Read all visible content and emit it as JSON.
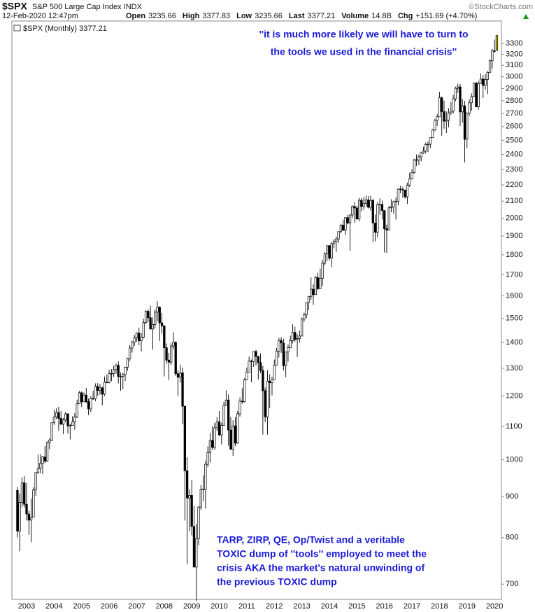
{
  "header": {
    "symbol": "$SPX",
    "name": "S&P 500 Large Cap Index INDX",
    "date": "12-Feb-2020 12:47pm",
    "quote": [
      {
        "label": "Open",
        "value": "3235.66"
      },
      {
        "label": "High",
        "value": "3377.83"
      },
      {
        "label": "Low",
        "value": "3235.66"
      },
      {
        "label": "Last",
        "value": "3377.21"
      },
      {
        "label": "Volume",
        "value": "14.8B"
      },
      {
        "label": "Chg",
        "value": "+151.69 (+4.70%)"
      }
    ],
    "source": "©StockCharts.com"
  },
  "chart_data": {
    "type": "candlestick",
    "legend": "$SPX (Monthly) 3377.21",
    "log_scale": true,
    "grid": false,
    "up_color": "#ffffff",
    "down_color": "#000000",
    "highlight_color": "#c9b800",
    "annotations": [
      {
        "lines": [
          "''it is much more likely we will have to turn to",
          "the tools we used in the financial crisis''"
        ],
        "color": "#1a1ad6"
      },
      {
        "lines": [
          "TARP, ZIRP, QE, Op/Twist and a veritable",
          "TOXIC dump of ''tools'' employed to meet the",
          "crisis AKA the market's natural unwinding of",
          "the previous TOXIC dump"
        ],
        "color": "#1a1ad6"
      }
    ],
    "categories": [
      null,
      null,
      null,
      null,
      "2003",
      null,
      null,
      null,
      null,
      null,
      null,
      null,
      null,
      null,
      null,
      null,
      "2004",
      null,
      null,
      null,
      null,
      null,
      null,
      null,
      null,
      null,
      null,
      null,
      "2005",
      null,
      null,
      null,
      null,
      null,
      null,
      null,
      null,
      null,
      null,
      null,
      "2006",
      null,
      null,
      null,
      null,
      null,
      null,
      null,
      null,
      null,
      null,
      null,
      "2007",
      null,
      null,
      null,
      null,
      null,
      null,
      null,
      null,
      null,
      null,
      null,
      "2008",
      null,
      null,
      null,
      null,
      null,
      null,
      null,
      null,
      null,
      null,
      null,
      "2009",
      null,
      null,
      null,
      null,
      null,
      null,
      null,
      null,
      null,
      null,
      null,
      "2010",
      null,
      null,
      null,
      null,
      null,
      null,
      null,
      null,
      null,
      null,
      null,
      "2011",
      null,
      null,
      null,
      null,
      null,
      null,
      null,
      null,
      null,
      null,
      null,
      "2012",
      null,
      null,
      null,
      null,
      null,
      null,
      null,
      null,
      null,
      null,
      null,
      "2013",
      null,
      null,
      null,
      null,
      null,
      null,
      null,
      null,
      null,
      null,
      null,
      "2014",
      null,
      null,
      null,
      null,
      null,
      null,
      null,
      null,
      null,
      null,
      null,
      "2015",
      null,
      null,
      null,
      null,
      null,
      null,
      null,
      null,
      null,
      null,
      null,
      "2016",
      null,
      null,
      null,
      null,
      null,
      null,
      null,
      null,
      null,
      null,
      null,
      "2017",
      null,
      null,
      null,
      null,
      null,
      null,
      null,
      null,
      null,
      null,
      null,
      "2018",
      null,
      null,
      null,
      null,
      null,
      null,
      null,
      null,
      null,
      null,
      null,
      "2019",
      null,
      null,
      null,
      null,
      null,
      null,
      null,
      null,
      null,
      null,
      null,
      "2020",
      null
    ],
    "open": [
      916,
      815,
      885,
      936,
      880,
      856,
      841,
      848,
      917,
      964,
      975,
      990,
      1008,
      996,
      1051,
      1058,
      1112,
      1131,
      1145,
      1126,
      1107,
      1121,
      1141,
      1102,
      1104,
      1115,
      1130,
      1174,
      1212,
      1181,
      1204,
      1181,
      1157,
      1192,
      1191,
      1234,
      1220,
      1229,
      1207,
      1249,
      1248,
      1280,
      1281,
      1295,
      1311,
      1270,
      1270,
      1277,
      1304,
      1336,
      1378,
      1401,
      1418,
      1438,
      1407,
      1421,
      1482,
      1531,
      1503,
      1455,
      1474,
      1527,
      1549,
      1481,
      1468,
      1379,
      1331,
      1323,
      1386,
      1400,
      1280,
      1267,
      1283,
      1166,
      969,
      896,
      903,
      826,
      735,
      798,
      873,
      919,
      919,
      987,
      1021,
      1057,
      1036,
      1096,
      1115,
      1074,
      1104,
      1169,
      1187,
      1089,
      1031,
      1102,
      1049,
      1141,
      1183,
      1181,
      1258,
      1286,
      1327,
      1326,
      1364,
      1345,
      1321,
      1292,
      1219,
      1131,
      1253,
      1247,
      1258,
      1312,
      1366,
      1408,
      1398,
      1310,
      1362,
      1379,
      1407,
      1441,
      1412,
      1416,
      1426,
      1498,
      1515,
      1569,
      1598,
      1631,
      1606,
      1686,
      1633,
      1682,
      1757,
      1806,
      1848,
      1783,
      1859,
      1872,
      1884,
      1924,
      1960,
      1931,
      2003,
      1972,
      2018,
      2068,
      2059,
      1995,
      2105,
      2068,
      2086,
      2107,
      2063,
      2104,
      1972,
      1920,
      2079,
      2080,
      2044,
      1940,
      1932,
      2060,
      2065,
      2097,
      2099,
      2174,
      2171,
      2168,
      2126,
      2199,
      2239,
      2279,
      2364,
      2363,
      2384,
      2412,
      2423,
      2470,
      2472,
      2519,
      2575,
      2648,
      2674,
      2824,
      2714,
      2641,
      2648,
      2705,
      2718,
      2816,
      2902,
      2914,
      2712,
      2760,
      2507,
      2704,
      2784,
      2834,
      2946,
      2752,
      2942,
      2980,
      2926,
      2977,
      3038,
      3141,
      3231,
      3235.66
    ],
    "high": [
      925,
      908,
      951,
      954,
      935,
      864,
      895,
      924,
      965,
      1015,
      1016,
      1011,
      1040,
      1054,
      1063,
      1112,
      1155,
      1159,
      1164,
      1151,
      1128,
      1147,
      1141,
      1109,
      1133,
      1143,
      1188,
      1218,
      1217,
      1213,
      1229,
      1191,
      1200,
      1219,
      1245,
      1246,
      1243,
      1234,
      1270,
      1276,
      1295,
      1297,
      1310,
      1318,
      1326,
      1284,
      1283,
      1306,
      1340,
      1389,
      1407,
      1431,
      1441,
      1461,
      1438,
      1498,
      1535,
      1540,
      1556,
      1504,
      1539,
      1576,
      1553,
      1524,
      1471,
      1396,
      1359,
      1397,
      1441,
      1405,
      1292,
      1314,
      1303,
      1168,
      1007,
      919,
      943,
      876,
      832,
      876,
      930,
      956,
      997,
      1039,
      1080,
      1101,
      1111,
      1130,
      1150,
      1112,
      1181,
      1220,
      1206,
      1131,
      1120,
      1130,
      1150,
      1196,
      1228,
      1263,
      1303,
      1345,
      1333,
      1365,
      1371,
      1347,
      1357,
      1308,
      1230,
      1293,
      1278,
      1269,
      1333,
      1378,
      1419,
      1422,
      1415,
      1363,
      1392,
      1427,
      1475,
      1465,
      1434,
      1448,
      1504,
      1525,
      1570,
      1598,
      1687,
      1654,
      1694,
      1710,
      1730,
      1775,
      1814,
      1849,
      1851,
      1867,
      1884,
      1897,
      1925,
      1968,
      1991,
      2005,
      2019,
      2019,
      2075,
      2093,
      2072,
      2119,
      2117,
      2126,
      2135,
      2130,
      2133,
      2113,
      2021,
      2094,
      2116,
      2104,
      2044,
      1963,
      2072,
      2111,
      2103,
      2121,
      2178,
      2194,
      2188,
      2170,
      2214,
      2278,
      2301,
      2371,
      2401,
      2399,
      2419,
      2454,
      2484,
      2491,
      2520,
      2582,
      2657,
      2695,
      2873,
      2835,
      2801,
      2718,
      2742,
      2791,
      2848,
      2916,
      2941,
      2940,
      2815,
      2800,
      2708,
      2813,
      2860,
      2950,
      2954,
      2964,
      3028,
      3014,
      3022,
      3050,
      3154,
      3248,
      3337,
      3377.83
    ],
    "low": [
      800,
      769,
      873,
      872,
      840,
      806,
      789,
      847,
      902,
      960,
      962,
      960,
      990,
      994,
      1031,
      1055,
      1105,
      1124,
      1087,
      1106,
      1076,
      1114,
      1078,
      1060,
      1103,
      1090,
      1127,
      1173,
      1163,
      1180,
      1176,
      1137,
      1146,
      1188,
      1183,
      1201,
      1205,
      1169,
      1201,
      1246,
      1245,
      1253,
      1268,
      1280,
      1245,
      1219,
      1224,
      1253,
      1291,
      1327,
      1360,
      1386,
      1403,
      1389,
      1364,
      1416,
      1476,
      1484,
      1454,
      1371,
      1457,
      1489,
      1406,
      1436,
      1270,
      1317,
      1257,
      1313,
      1374,
      1272,
      1200,
      1248,
      1107,
      840,
      741,
      815,
      805,
      735,
      667,
      783,
      866,
      888,
      869,
      979,
      992,
      1029,
      1029,
      1086,
      1071,
      1045,
      1102,
      1168,
      1041,
      1028,
      1011,
      1040,
      1047,
      1132,
      1174,
      1178,
      1257,
      1285,
      1249,
      1305,
      1311,
      1259,
      1282,
      1075,
      1114,
      1075,
      1159,
      1203,
      1258,
      1312,
      1341,
      1358,
      1292,
      1267,
      1325,
      1378,
      1396,
      1403,
      1343,
      1399,
      1426,
      1485,
      1501,
      1536,
      1581,
      1560,
      1605,
      1627,
      1633,
      1647,
      1746,
      1768,
      1771,
      1738,
      1834,
      1815,
      1862,
      1915,
      1930,
      1905,
      1965,
      1821,
      2001,
      1973,
      1988,
      1981,
      2040,
      2048,
      2068,
      2056,
      2044,
      1867,
      1872,
      1894,
      2019,
      1993,
      1812,
      1810,
      1938,
      2034,
      2025,
      1992,
      2075,
      2148,
      2120,
      2114,
      2084,
      2187,
      2234,
      2272,
      2322,
      2329,
      2353,
      2405,
      2407,
      2417,
      2446,
      2520,
      2566,
      2605,
      2674,
      2533,
      2585,
      2553,
      2595,
      2692,
      2699,
      2796,
      2864,
      2604,
      2631,
      2346,
      2443,
      2681,
      2722,
      2848,
      2750,
      2729,
      2942,
      2822,
      2892,
      2855,
      3038,
      3070,
      3215,
      3235.66
    ],
    "close": [
      815,
      885,
      936,
      880,
      856,
      841,
      848,
      917,
      964,
      975,
      990,
      1008,
      996,
      1051,
      1058,
      1112,
      1131,
      1145,
      1126,
      1107,
      1121,
      1141,
      1102,
      1104,
      1115,
      1130,
      1174,
      1212,
      1181,
      1204,
      1181,
      1157,
      1192,
      1191,
      1234,
      1220,
      1229,
      1207,
      1249,
      1248,
      1280,
      1281,
      1295,
      1311,
      1270,
      1270,
      1277,
      1304,
      1336,
      1378,
      1401,
      1418,
      1438,
      1407,
      1421,
      1482,
      1531,
      1503,
      1455,
      1474,
      1527,
      1549,
      1481,
      1468,
      1379,
      1331,
      1323,
      1386,
      1400,
      1280,
      1267,
      1283,
      1166,
      969,
      896,
      903,
      826,
      735,
      798,
      873,
      919,
      919,
      987,
      1021,
      1057,
      1036,
      1096,
      1115,
      1074,
      1104,
      1169,
      1187,
      1089,
      1031,
      1102,
      1049,
      1141,
      1183,
      1181,
      1258,
      1286,
      1327,
      1326,
      1364,
      1345,
      1321,
      1292,
      1219,
      1131,
      1253,
      1247,
      1258,
      1312,
      1366,
      1408,
      1398,
      1310,
      1362,
      1379,
      1407,
      1441,
      1412,
      1416,
      1426,
      1498,
      1515,
      1569,
      1598,
      1631,
      1606,
      1686,
      1633,
      1682,
      1757,
      1806,
      1848,
      1783,
      1859,
      1872,
      1884,
      1924,
      1960,
      1931,
      2003,
      1972,
      2018,
      2068,
      2059,
      1995,
      2105,
      2068,
      2086,
      2107,
      2063,
      2104,
      1972,
      1920,
      2079,
      2080,
      2044,
      1940,
      1932,
      2060,
      2065,
      2097,
      2099,
      2174,
      2171,
      2168,
      2126,
      2199,
      2239,
      2279,
      2364,
      2363,
      2384,
      2412,
      2423,
      2470,
      2472,
      2519,
      2575,
      2648,
      2674,
      2824,
      2714,
      2641,
      2648,
      2705,
      2718,
      2816,
      2902,
      2914,
      2712,
      2760,
      2507,
      2704,
      2784,
      2834,
      2946,
      2752,
      2942,
      2980,
      2926,
      2977,
      3038,
      3141,
      3231,
      3226,
      3377.21
    ],
    "ylim": [
      670,
      3520
    ],
    "yticks": [
      700,
      800,
      900,
      1000,
      1100,
      1200,
      1300,
      1400,
      1500,
      1600,
      1700,
      1800,
      1900,
      2000,
      2100,
      2200,
      2300,
      2400,
      2500,
      2600,
      2700,
      2800,
      2900,
      3000,
      3100,
      3200,
      3300
    ]
  }
}
